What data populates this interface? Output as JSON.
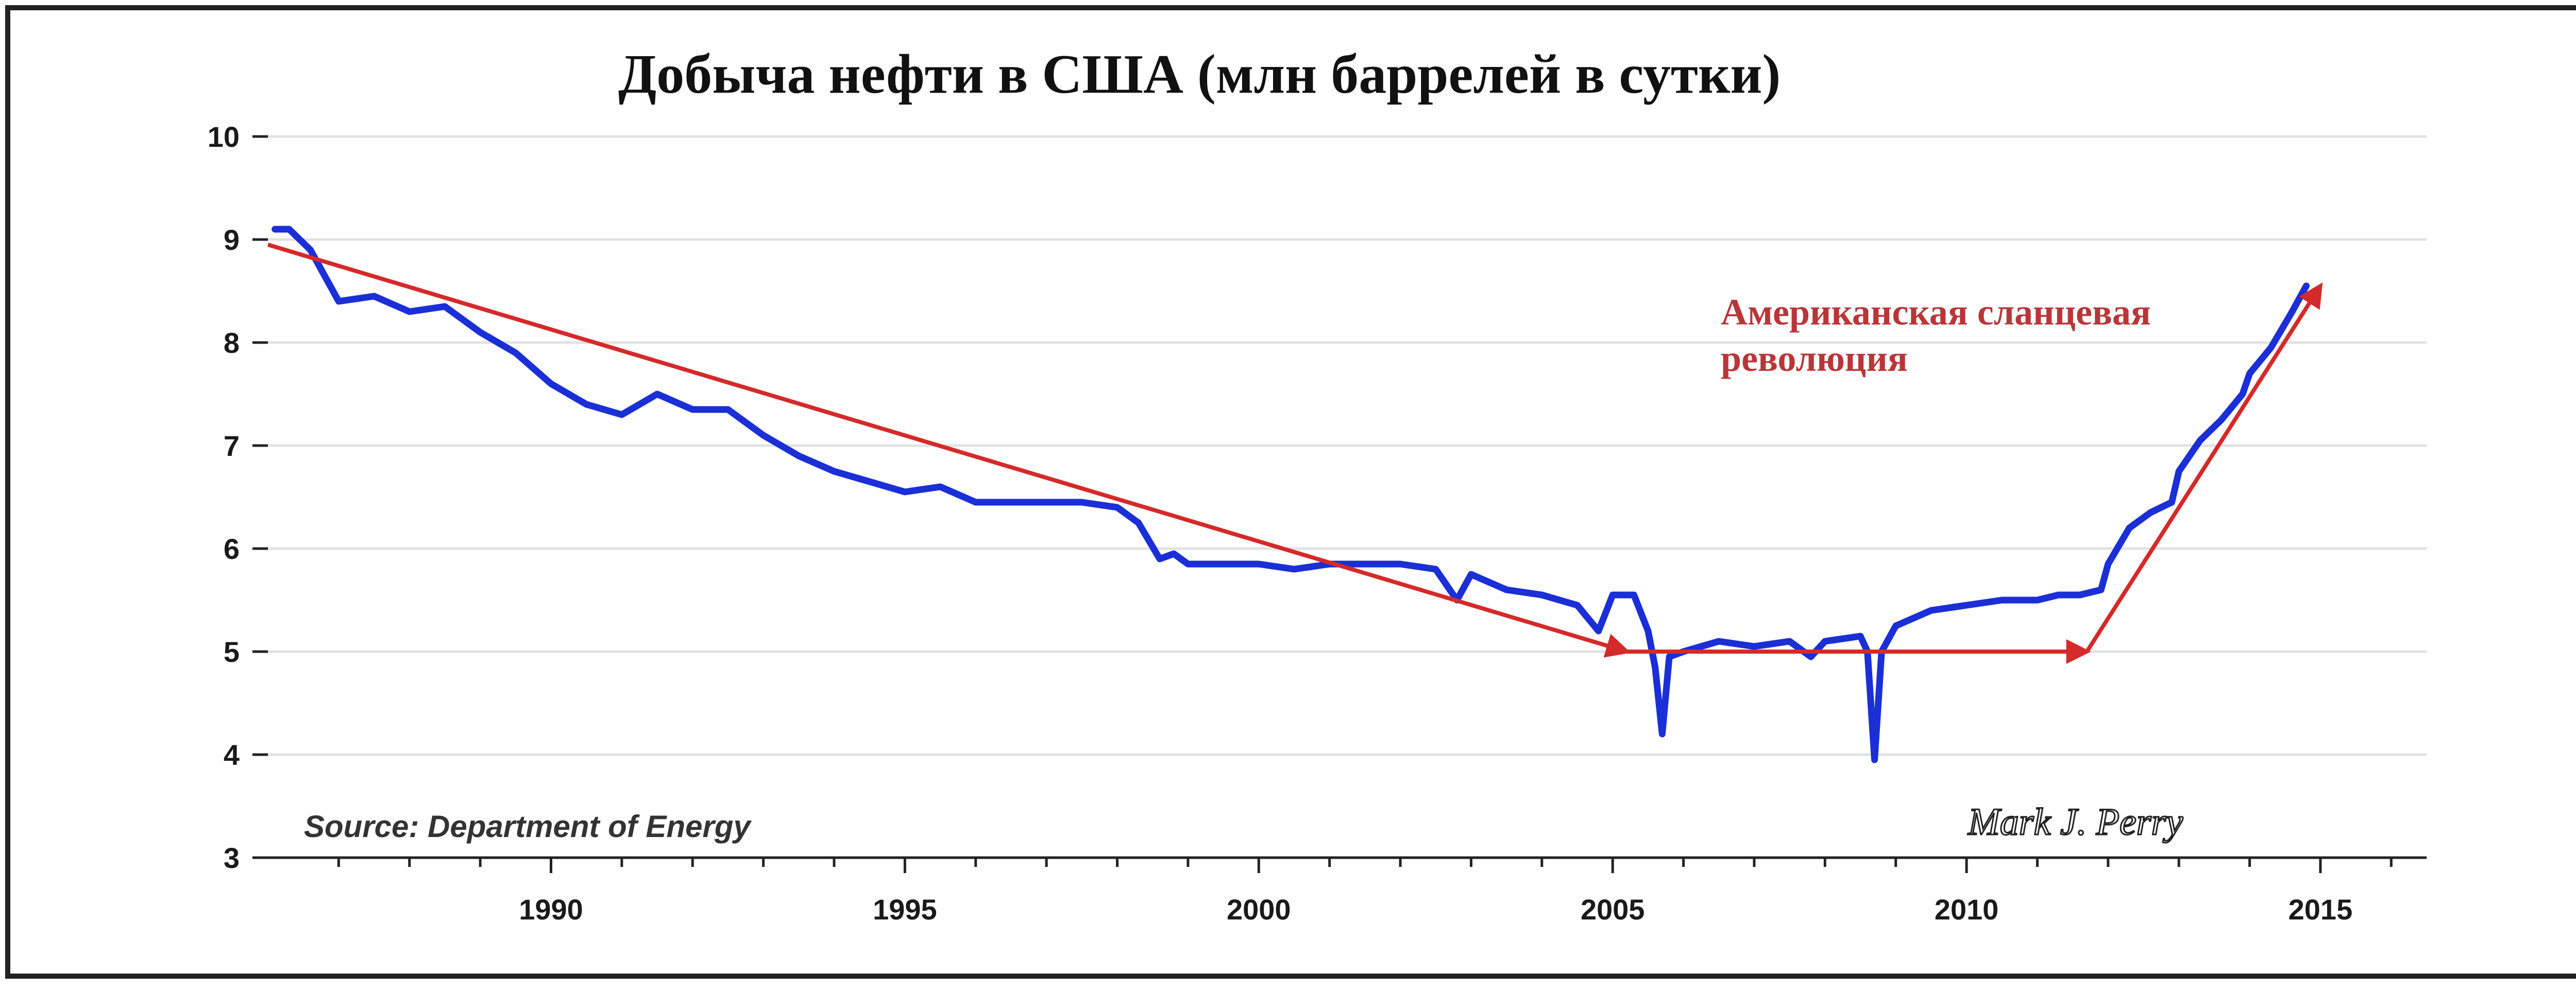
{
  "chart_data": {
    "type": "line",
    "title": "Добыча нефти в США (млн баррелей в сутки)",
    "xlabel": "",
    "ylabel": "",
    "xlim": [
      1986,
      2016.5
    ],
    "ylim": [
      3,
      10
    ],
    "x_ticks": [
      "1990",
      "1995",
      "2000",
      "2005",
      "2010",
      "2015"
    ],
    "y_ticks": [
      "3",
      "4",
      "5",
      "6",
      "7",
      "8",
      "9",
      "10"
    ],
    "grid": true,
    "series": [
      {
        "color": "#1a2fd6",
        "x": [
          1986.1,
          1986.3,
          1986.6,
          1987.0,
          1987.5,
          1988.0,
          1988.5,
          1989.0,
          1989.5,
          1990.0,
          1990.5,
          1991.0,
          1991.5,
          1992.0,
          1992.5,
          1993.0,
          1993.5,
          1994.0,
          1994.5,
          1995.0,
          1995.5,
          1996.0,
          1996.5,
          1997.0,
          1997.5,
          1998.0,
          1998.3,
          1998.6,
          1998.8,
          1999.0,
          1999.5,
          2000.0,
          2000.5,
          2001.0,
          2001.5,
          2002.0,
          2002.5,
          2002.8,
          2003.0,
          2003.5,
          2004.0,
          2004.5,
          2004.8,
          2005.0,
          2005.3,
          2005.5,
          2005.6,
          2005.7,
          2005.8,
          2006.0,
          2006.5,
          2007.0,
          2007.5,
          2007.8,
          2008.0,
          2008.5,
          2008.6,
          2008.7,
          2008.8,
          2009.0,
          2009.5,
          2010.0,
          2010.5,
          2011.0,
          2011.3,
          2011.6,
          2011.9,
          2012.0,
          2012.3,
          2012.6,
          2012.9,
          2013.0,
          2013.3,
          2013.6,
          2013.9,
          2014.0,
          2014.3,
          2014.6,
          2014.8
        ],
        "y": [
          9.1,
          9.1,
          8.9,
          8.4,
          8.45,
          8.3,
          8.35,
          8.1,
          7.9,
          7.6,
          7.4,
          7.3,
          7.5,
          7.35,
          7.35,
          7.1,
          6.9,
          6.75,
          6.65,
          6.55,
          6.6,
          6.45,
          6.45,
          6.45,
          6.45,
          6.4,
          6.25,
          5.9,
          5.95,
          5.85,
          5.85,
          5.85,
          5.8,
          5.85,
          5.85,
          5.85,
          5.8,
          5.5,
          5.75,
          5.6,
          5.55,
          5.45,
          5.2,
          5.55,
          5.55,
          5.2,
          4.85,
          4.2,
          4.95,
          5.0,
          5.1,
          5.05,
          5.1,
          4.95,
          5.1,
          5.15,
          5.0,
          3.95,
          5.0,
          5.25,
          5.4,
          5.45,
          5.5,
          5.5,
          5.55,
          5.55,
          5.6,
          5.85,
          6.2,
          6.35,
          6.45,
          6.75,
          7.05,
          7.25,
          7.5,
          7.7,
          7.95,
          8.3,
          8.55
        ]
      }
    ],
    "arrows": [
      {
        "color": "#d42a2a",
        "x": [
          1986.0,
          2005.2
        ],
        "y": [
          8.95,
          5.0
        ]
      },
      {
        "color": "#d42a2a",
        "x": [
          2005.2,
          2011.7
        ],
        "y": [
          5.0,
          5.0
        ]
      },
      {
        "color": "#d42a2a",
        "x": [
          2011.7,
          2015.0
        ],
        "y": [
          5.0,
          8.55
        ]
      }
    ],
    "annotation": "Американская сланцевая революция",
    "annotation_lines": [
      "Американская сланцевая",
      "революция"
    ],
    "source": "Source: Department of Energy",
    "author": "Mark J. Perry"
  },
  "colors": {
    "line": "#1a2fd6",
    "arrow": "#d42a2a",
    "annotation": "#b8363a",
    "grid": "#e2e2e2",
    "plot_bg": "#ffffff"
  }
}
